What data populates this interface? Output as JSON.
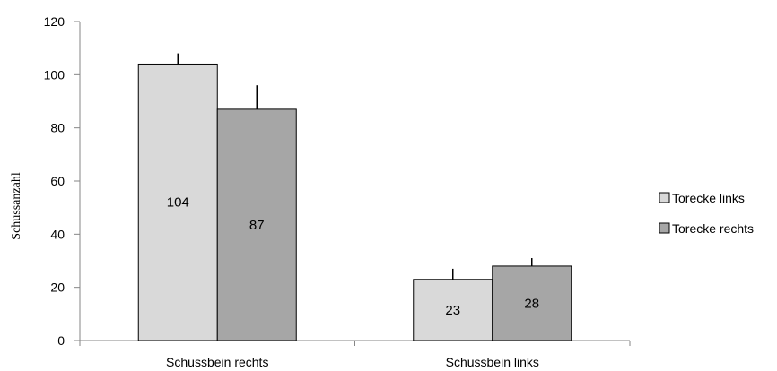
{
  "chart_data": {
    "type": "bar",
    "ylabel": "Schussanzahl",
    "xlabel": "",
    "ylim": [
      0,
      120
    ],
    "yticks": [
      0,
      20,
      40,
      60,
      80,
      100,
      120
    ],
    "categories": [
      "Schussbein rechts",
      "Schussbein links"
    ],
    "series": [
      {
        "name": "Torecke links",
        "color": "#d9d9d9",
        "values": [
          104,
          23
        ],
        "errors": [
          4,
          4
        ]
      },
      {
        "name": "Torecke rechts",
        "color": "#a6a6a6",
        "values": [
          87,
          28
        ],
        "errors": [
          9,
          3
        ]
      }
    ],
    "data_labels": [
      "104",
      "87",
      "23",
      "28"
    ],
    "legend_position": "right",
    "grid": false
  }
}
